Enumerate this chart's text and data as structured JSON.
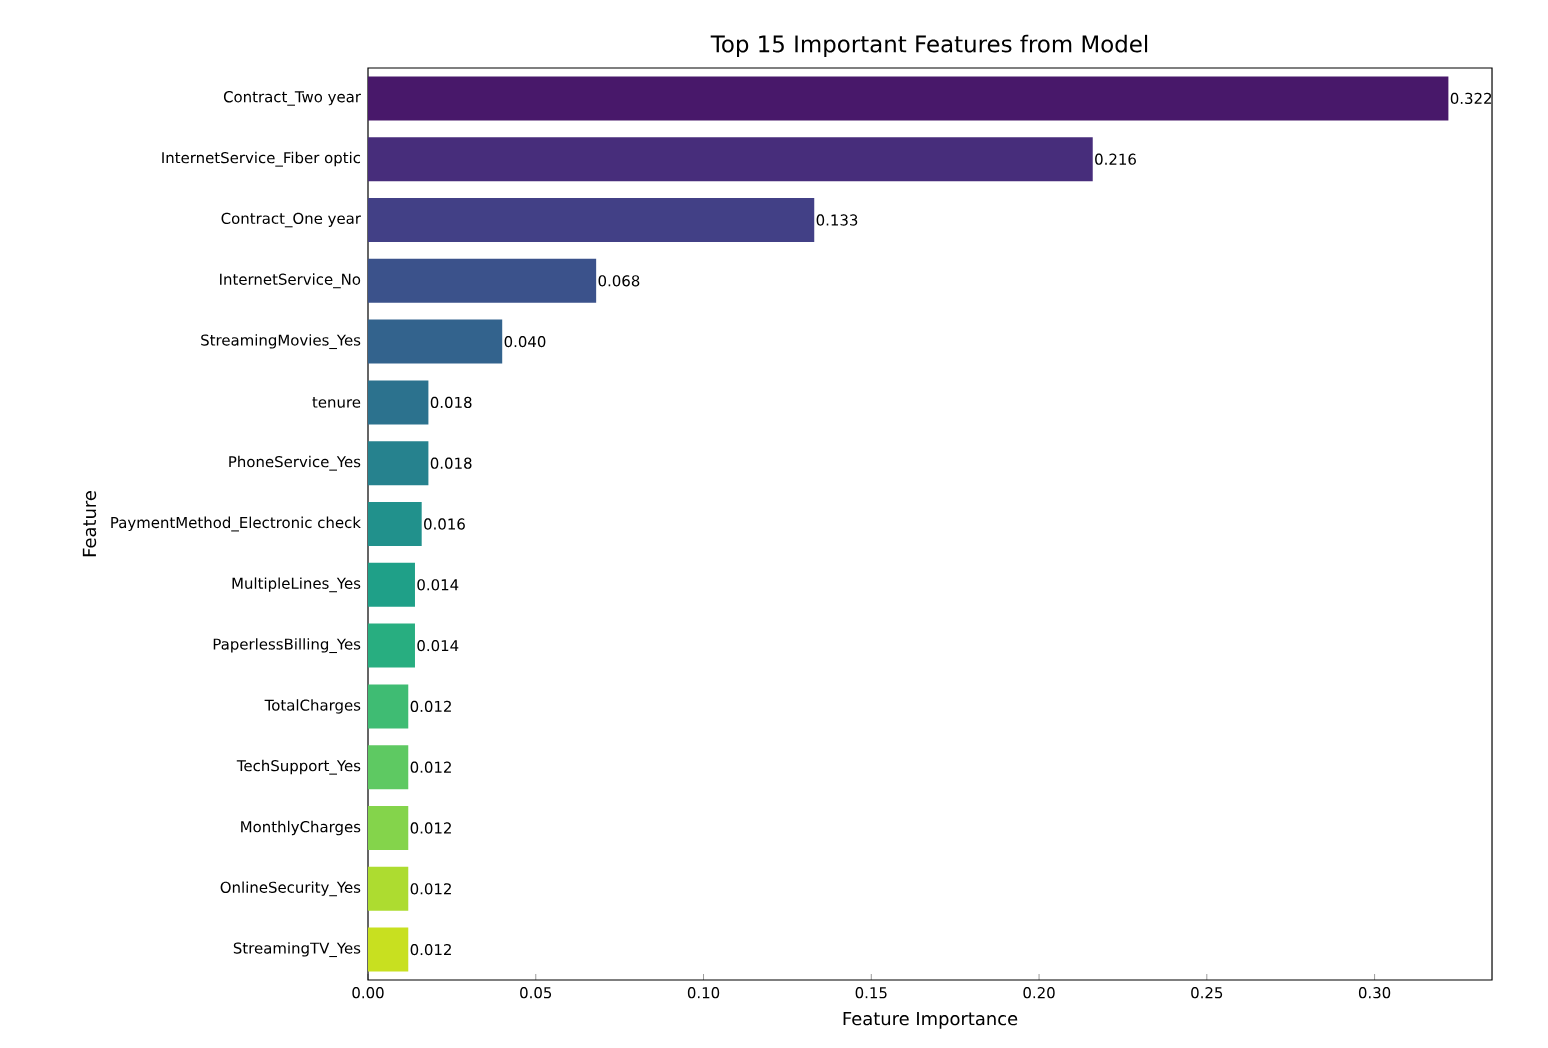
{
  "chart_data": {
    "type": "bar",
    "orientation": "horizontal",
    "title": "Top 15 Important Features from Model",
    "xlabel": "Feature Importance",
    "ylabel": "Feature",
    "categories": [
      "Contract_Two year",
      "InternetService_Fiber optic",
      "Contract_One year",
      "InternetService_No",
      "StreamingMovies_Yes",
      "tenure",
      "PhoneService_Yes",
      "PaymentMethod_Electronic check",
      "MultipleLines_Yes",
      "PaperlessBilling_Yes",
      "TotalCharges",
      "TechSupport_Yes",
      "MonthlyCharges",
      "OnlineSecurity_Yes",
      "StreamingTV_Yes"
    ],
    "values": [
      0.322,
      0.216,
      0.133,
      0.068,
      0.04,
      0.018,
      0.018,
      0.016,
      0.014,
      0.014,
      0.012,
      0.012,
      0.012,
      0.012,
      0.012
    ],
    "value_labels": [
      "0.322",
      "0.216",
      "0.133",
      "0.068",
      "0.040",
      "0.018",
      "0.018",
      "0.016",
      "0.014",
      "0.014",
      "0.012",
      "0.012",
      "0.012",
      "0.012",
      "0.012"
    ],
    "colors": [
      "#48186a",
      "#472d7b",
      "#424086",
      "#3b528b",
      "#33638d",
      "#2c728e",
      "#26828e",
      "#21918c",
      "#1fa088",
      "#28ae80",
      "#3fbc73",
      "#5ec962",
      "#84d44b",
      "#addc30",
      "#c8e020"
    ],
    "xlim": [
      0,
      0.335
    ],
    "xticks": [
      {
        "value": 0,
        "label": "0.00"
      },
      {
        "value": 0.05,
        "label": "0.05"
      },
      {
        "value": 0.1,
        "label": "0.10"
      },
      {
        "value": 0.15,
        "label": "0.15"
      },
      {
        "value": 0.2,
        "label": "0.20"
      },
      {
        "value": 0.25,
        "label": "0.25"
      },
      {
        "value": 0.3,
        "label": "0.30"
      }
    ]
  }
}
